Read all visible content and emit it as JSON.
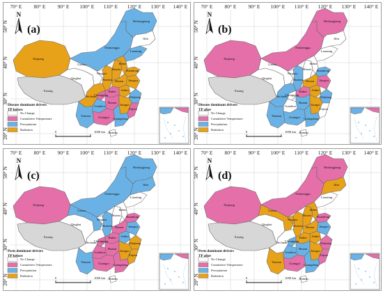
{
  "axis_ticks": {
    "lon": [
      "70° E",
      "80° E",
      "90° E",
      "100° E",
      "110° E",
      "120° E",
      "130° E",
      "140° E"
    ],
    "lat": [
      "50° N",
      "40° N",
      "30° N",
      "20° N"
    ]
  },
  "colors": {
    "no_change": "#ffffff",
    "cumulative_temperature": "#e46fa9",
    "precipitation": "#6ab2e6",
    "radiation": "#e8a21a",
    "unassigned": "#d7d7d7",
    "border": "#6b6b6b"
  },
  "legend_items": [
    {
      "key": "no_change",
      "label": "No Change"
    },
    {
      "key": "cumulative_temperature",
      "label": "Cumulative Temperature"
    },
    {
      "key": "precipitation",
      "label": "Precipitation"
    },
    {
      "key": "radiation",
      "label": "Radiation"
    }
  ],
  "scale": {
    "start": "0",
    "end": "1000 km"
  },
  "north_label": "N",
  "province_names": {
    "Heilongjiang": "Heilongjiang",
    "Jilin": "Jilin",
    "Liaoning": "Liaoning",
    "Neimenggu": "Neimenggu",
    "Xinjiang": "Xinjiang",
    "Xizang": "Xizang",
    "Qinghai": "Qinghai",
    "Gansu": "Gansu",
    "Ningxia": "Ningxia",
    "Shaanxi": "Shaanxi",
    "Shanxi": "Shanxi",
    "Hebei": "Hebei",
    "Shandong": "Shandong",
    "Henan": "Henan",
    "Hubei": "Hubei",
    "Hunan": "Hunan",
    "Jiangxi": "Jiangxi",
    "Anhui": "Anhui",
    "Jiangsu": "Jiangsu",
    "Zhejiang": "Zhejiang",
    "Fujian": "Fujian",
    "Guangdong": "Guangdong",
    "Guangxi": "Guangxi",
    "Guizhou": "Guizhou",
    "Yunnan": "Yunnan",
    "Sichuan": "Sichuan",
    "Chongqing": "Chongqing",
    "Hainan": "Hainan"
  },
  "panels": [
    {
      "letter": "(a)",
      "legend_title": [
        "Disease dominant drivers",
        "TP before"
      ],
      "fills": {
        "Heilongjiang": "precipitation",
        "Jilin": "no_change",
        "Liaoning": "precipitation",
        "Neimenggu": "precipitation",
        "Xinjiang": "radiation",
        "Xizang": "unassigned",
        "Qinghai": "no_change",
        "Gansu": "no_change",
        "Ningxia": "no_change",
        "Shaanxi": "radiation",
        "Shanxi": "radiation",
        "Hebei": "radiation",
        "Shandong": "radiation",
        "Henan": "radiation",
        "Hubei": "cumulative_temperature",
        "Hunan": "cumulative_temperature",
        "Jiangxi": "radiation",
        "Anhui": "radiation",
        "Jiangsu": "radiation",
        "Zhejiang": "precipitation",
        "Fujian": "cumulative_temperature",
        "Guangdong": "precipitation",
        "Guangxi": "cumulative_temperature",
        "Guizhou": "precipitation",
        "Yunnan": "precipitation",
        "Sichuan": "radiation",
        "Chongqing": "cumulative_temperature",
        "Hainan": "no_change"
      }
    },
    {
      "letter": "(b)",
      "legend_title": [
        "Disease dominant drivers",
        "TP after"
      ],
      "fills": {
        "Heilongjiang": "cumulative_temperature",
        "Jilin": "no_change",
        "Liaoning": "no_change",
        "Neimenggu": "cumulative_temperature",
        "Xinjiang": "cumulative_temperature",
        "Xizang": "unassigned",
        "Qinghai": "no_change",
        "Gansu": "no_change",
        "Ningxia": "no_change",
        "Shaanxi": "precipitation",
        "Shanxi": "no_change",
        "Hebei": "no_change",
        "Shandong": "precipitation",
        "Henan": "radiation",
        "Hubei": "cumulative_temperature",
        "Hunan": "precipitation",
        "Jiangxi": "radiation",
        "Anhui": "radiation",
        "Jiangsu": "cumulative_temperature",
        "Zhejiang": "precipitation",
        "Fujian": "no_change",
        "Guangdong": "precipitation",
        "Guangxi": "precipitation",
        "Guizhou": "no_change",
        "Yunnan": "precipitation",
        "Sichuan": "precipitation",
        "Chongqing": "no_change",
        "Hainan": "no_change"
      }
    },
    {
      "letter": "(c)",
      "legend_title": [
        "Pests dominant drivers",
        "TP before"
      ],
      "fills": {
        "Heilongjiang": "precipitation",
        "Jilin": "precipitation",
        "Liaoning": "no_change",
        "Neimenggu": "precipitation",
        "Xinjiang": "cumulative_temperature",
        "Xizang": "unassigned",
        "Qinghai": "no_change",
        "Gansu": "precipitation",
        "Ningxia": "no_change",
        "Shaanxi": "precipitation",
        "Shanxi": "no_change",
        "Hebei": "no_change",
        "Shandong": "cumulative_temperature",
        "Henan": "cumulative_temperature",
        "Hubei": "cumulative_temperature",
        "Hunan": "cumulative_temperature",
        "Jiangxi": "radiation",
        "Anhui": "precipitation",
        "Jiangsu": "precipitation",
        "Zhejiang": "radiation",
        "Fujian": "radiation",
        "Guangdong": "cumulative_temperature",
        "Guangxi": "cumulative_temperature",
        "Guizhou": "cumulative_temperature",
        "Yunnan": "precipitation",
        "Sichuan": "no_change",
        "Chongqing": "cumulative_temperature",
        "Hainan": "no_change"
      }
    },
    {
      "letter": "(d)",
      "legend_title": [
        "Pests dominant drivers",
        "TP after"
      ],
      "fills": {
        "Heilongjiang": "cumulative_temperature",
        "Jilin": "radiation",
        "Liaoning": "no_change",
        "Neimenggu": "cumulative_temperature",
        "Xinjiang": "cumulative_temperature",
        "Xizang": "unassigned",
        "Qinghai": "no_change",
        "Gansu": "radiation",
        "Ningxia": "radiation",
        "Shaanxi": "radiation",
        "Shanxi": "radiation",
        "Hebei": "radiation",
        "Shandong": "cumulative_temperature",
        "Henan": "radiation",
        "Hubei": "radiation",
        "Hunan": "precipitation",
        "Jiangxi": "radiation",
        "Anhui": "radiation",
        "Jiangsu": "precipitation",
        "Zhejiang": "cumulative_temperature",
        "Fujian": "cumulative_temperature",
        "Guangdong": "precipitation",
        "Guangxi": "cumulative_temperature",
        "Guizhou": "precipitation",
        "Yunnan": "radiation",
        "Sichuan": "no_change",
        "Chongqing": "precipitation",
        "Hainan": "no_change"
      }
    }
  ]
}
